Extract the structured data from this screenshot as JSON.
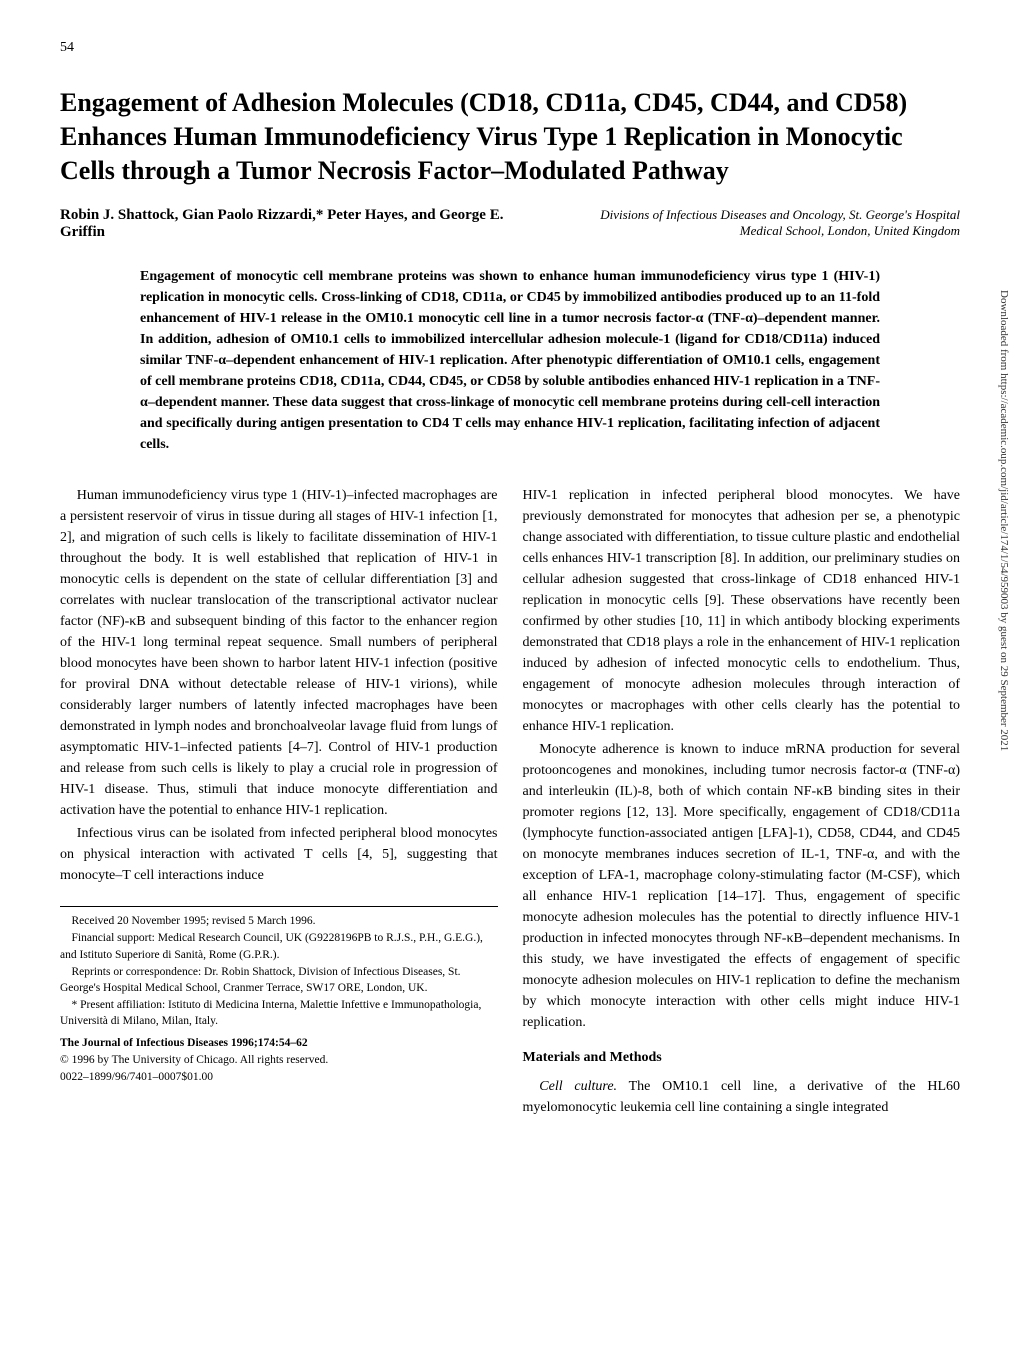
{
  "page_number": "54",
  "title": "Engagement of Adhesion Molecules (CD18, CD11a, CD45, CD44, and CD58) Enhances Human Immunodeficiency Virus Type 1 Replication in Monocytic Cells through a Tumor Necrosis Factor–Modulated Pathway",
  "authors": "Robin J. Shattock, Gian Paolo Rizzardi,* Peter Hayes, and George E. Griffin",
  "affiliation": "Divisions of Infectious Diseases and Oncology, St. George's Hospital Medical School, London, United Kingdom",
  "abstract": "Engagement of monocytic cell membrane proteins was shown to enhance human immunodeficiency virus type 1 (HIV-1) replication in monocytic cells. Cross-linking of CD18, CD11a, or CD45 by immobilized antibodies produced up to an 11-fold enhancement of HIV-1 release in the OM10.1 monocytic cell line in a tumor necrosis factor-α (TNF-α)–dependent manner. In addition, adhesion of OM10.1 cells to immobilized intercellular adhesion molecule-1 (ligand for CD18/CD11a) induced similar TNF-α–dependent enhancement of HIV-1 replication. After phenotypic differentiation of OM10.1 cells, engagement of cell membrane proteins CD18, CD11a, CD44, CD45, or CD58 by soluble antibodies enhanced HIV-1 replication in a TNF-α–dependent manner. These data suggest that cross-linkage of monocytic cell membrane proteins during cell-cell interaction and specifically during antigen presentation to CD4 T cells may enhance HIV-1 replication, facilitating infection of adjacent cells.",
  "left_column": {
    "p1": "Human immunodeficiency virus type 1 (HIV-1)–infected macrophages are a persistent reservoir of virus in tissue during all stages of HIV-1 infection [1, 2], and migration of such cells is likely to facilitate dissemination of HIV-1 throughout the body. It is well established that replication of HIV-1 in monocytic cells is dependent on the state of cellular differentiation [3] and correlates with nuclear translocation of the transcriptional activator nuclear factor (NF)-κB and subsequent binding of this factor to the enhancer region of the HIV-1 long terminal repeat sequence. Small numbers of peripheral blood monocytes have been shown to harbor latent HIV-1 infection (positive for proviral DNA without detectable release of HIV-1 virions), while considerably larger numbers of latently infected macrophages have been demonstrated in lymph nodes and bronchoalveolar lavage fluid from lungs of asymptomatic HIV-1–infected patients [4–7]. Control of HIV-1 production and release from such cells is likely to play a crucial role in progression of HIV-1 disease. Thus, stimuli that induce monocyte differentiation and activation have the potential to enhance HIV-1 replication.",
    "p2": "Infectious virus can be isolated from infected peripheral blood monocytes on physical interaction with activated T cells [4, 5], suggesting that monocyte–T cell interactions induce"
  },
  "right_column": {
    "p1": "HIV-1 replication in infected peripheral blood monocytes. We have previously demonstrated for monocytes that adhesion per se, a phenotypic change associated with differentiation, to tissue culture plastic and endothelial cells enhances HIV-1 transcription [8]. In addition, our preliminary studies on cellular adhesion suggested that cross-linkage of CD18 enhanced HIV-1 replication in monocytic cells [9]. These observations have recently been confirmed by other studies [10, 11] in which antibody blocking experiments demonstrated that CD18 plays a role in the enhancement of HIV-1 replication induced by adhesion of infected monocytic cells to endothelium. Thus, engagement of monocyte adhesion molecules through interaction of monocytes or macrophages with other cells clearly has the potential to enhance HIV-1 replication.",
    "p2": "Monocyte adherence is known to induce mRNA production for several protooncogenes and monokines, including tumor necrosis factor-α (TNF-α) and interleukin (IL)-8, both of which contain NF-κB binding sites in their promoter regions [12, 13]. More specifically, engagement of CD18/CD11a (lymphocyte function-associated antigen [LFA]-1), CD58, CD44, and CD45 on monocyte membranes induces secretion of IL-1, TNF-α, and with the exception of LFA-1, macrophage colony-stimulating factor (M-CSF), which all enhance HIV-1 replication [14–17]. Thus, engagement of specific monocyte adhesion molecules has the potential to directly influence HIV-1 production in infected monocytes through NF-κB–dependent mechanisms. In this study, we have investigated the effects of engagement of specific monocyte adhesion molecules on HIV-1 replication to define the mechanism by which monocyte interaction with other cells might induce HIV-1 replication.",
    "methods_heading": "Materials and Methods",
    "methods_label": "Cell culture.",
    "methods_text": "The OM10.1 cell line, a derivative of the HL60 myelomonocytic leukemia cell line containing a single integrated"
  },
  "footnotes": {
    "received": "Received 20 November 1995; revised 5 March 1996.",
    "financial": "Financial support: Medical Research Council, UK (G9228196PB to R.J.S., P.H., G.E.G.), and Istituto Superiore di Sanità, Rome (G.P.R.).",
    "reprints": "Reprints or correspondence: Dr. Robin Shattock, Division of Infectious Diseases, St. George's Hospital Medical School, Cranmer Terrace, SW17 ORE, London, UK.",
    "present": "* Present affiliation: Istituto di Medicina Interna, Malettie Infettive e Immunopathologia, Università di Milano, Milan, Italy.",
    "journal_title": "The Journal of Infectious Diseases   1996;174:54–62",
    "copyright": "© 1996 by The University of Chicago. All rights reserved.",
    "issn": "0022–1899/96/7401–0007$01.00"
  },
  "sidebar": "Downloaded from https://academic.oup.com/jid/article/174/1/54/959003 by guest on 29 September 2021"
}
